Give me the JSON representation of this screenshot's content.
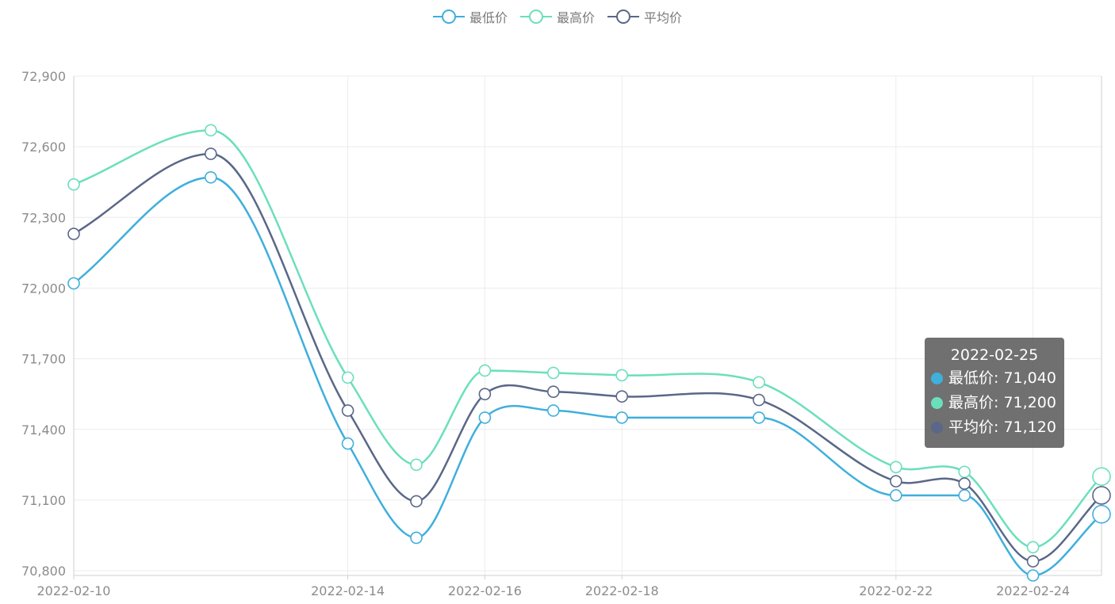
{
  "chart_data": {
    "type": "line",
    "x": [
      "2022-02-10",
      "2022-02-12",
      "2022-02-14",
      "2022-02-15",
      "2022-02-16",
      "2022-02-17",
      "2022-02-18",
      "2022-02-20",
      "2022-02-22",
      "2022-02-23",
      "2022-02-24",
      "2022-02-25"
    ],
    "xticks": [
      "2022-02-10",
      "2022-02-14",
      "2022-02-16",
      "2022-02-18",
      "2022-02-22",
      "2022-02-24"
    ],
    "ylim": [
      70780,
      72900
    ],
    "yticks": [
      70800,
      71100,
      71400,
      71700,
      72000,
      72300,
      72600,
      72900
    ],
    "ytick_labels": [
      "70,800",
      "71,100",
      "71,400",
      "71,700",
      "72,000",
      "72,300",
      "72,600",
      "72,900"
    ],
    "grid": true,
    "legend_position": "top-center",
    "smooth": true,
    "series": [
      {
        "name": "最低价",
        "color": "#3fafdc",
        "values": [
          72020,
          72470,
          71340,
          70940,
          71450,
          71480,
          71450,
          71450,
          71120,
          71120,
          70780,
          71040
        ]
      },
      {
        "name": "最高价",
        "color": "#6bdfbc",
        "values": [
          72440,
          72670,
          71620,
          71250,
          71650,
          71640,
          71630,
          71600,
          71240,
          71220,
          70900,
          71200
        ]
      },
      {
        "name": "平均价",
        "color": "#5a6788",
        "values": [
          72230,
          72570,
          71480,
          71095,
          71550,
          71560,
          71540,
          71525,
          71180,
          71170,
          70840,
          71120
        ]
      }
    ]
  },
  "tooltip": {
    "title": "2022-02-25",
    "rows": [
      {
        "label": "最低价: 71,040",
        "color": "#3fafdc"
      },
      {
        "label": "最高价: 71,200",
        "color": "#6bdfbc"
      },
      {
        "label": "平均价: 71,120",
        "color": "#5a6788"
      }
    ]
  }
}
